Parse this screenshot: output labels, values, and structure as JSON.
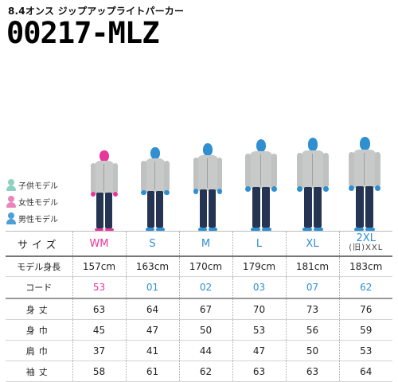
{
  "header": {
    "subtitle": "8.4オンス ジップアップライトパーカー",
    "model_code": "00217-MLZ"
  },
  "legend": [
    {
      "label": "子供モデル",
      "color": "#8fd0c3"
    },
    {
      "label": "女性モデル",
      "color": "#e985bd"
    },
    {
      "label": "男性モデル",
      "color": "#4d9fd8"
    }
  ],
  "colors": {
    "women": "#e7379a",
    "men": "#2f8fd0",
    "hoodie": "#c8c9c9",
    "jeans": "#243452"
  },
  "models": [
    {
      "type": "women",
      "height_cm": 157
    },
    {
      "type": "men",
      "height_cm": 163
    },
    {
      "type": "men",
      "height_cm": 170
    },
    {
      "type": "men",
      "height_cm": 179
    },
    {
      "type": "men",
      "height_cm": 181
    },
    {
      "type": "men",
      "height_cm": 183
    }
  ],
  "table": {
    "size_label": "サイズ",
    "sizes": [
      {
        "label": "WM",
        "color": "#e7379a"
      },
      {
        "label": "S",
        "color": "#2f8fd0"
      },
      {
        "label": "M",
        "color": "#2f8fd0"
      },
      {
        "label": "L",
        "color": "#2f8fd0"
      },
      {
        "label": "XL",
        "color": "#2f8fd0"
      },
      {
        "label": "2XL",
        "alt": "(旧)XXL",
        "color": "#2f8fd0"
      }
    ],
    "rows": [
      {
        "label": "モデル身長",
        "values": [
          "157cm",
          "163cm",
          "170cm",
          "179cm",
          "181cm",
          "183cm"
        ]
      },
      {
        "label": "コード",
        "values": [
          "53",
          "01",
          "02",
          "03",
          "07",
          "62"
        ]
      },
      {
        "label": "身丈",
        "values": [
          "63",
          "64",
          "67",
          "70",
          "73",
          "76"
        ]
      },
      {
        "label": "身巾",
        "values": [
          "45",
          "47",
          "50",
          "53",
          "56",
          "59"
        ]
      },
      {
        "label": "肩巾",
        "values": [
          "37",
          "41",
          "44",
          "47",
          "50",
          "53"
        ]
      },
      {
        "label": "袖丈",
        "values": [
          "58",
          "61",
          "62",
          "63",
          "63",
          "64"
        ]
      }
    ]
  }
}
